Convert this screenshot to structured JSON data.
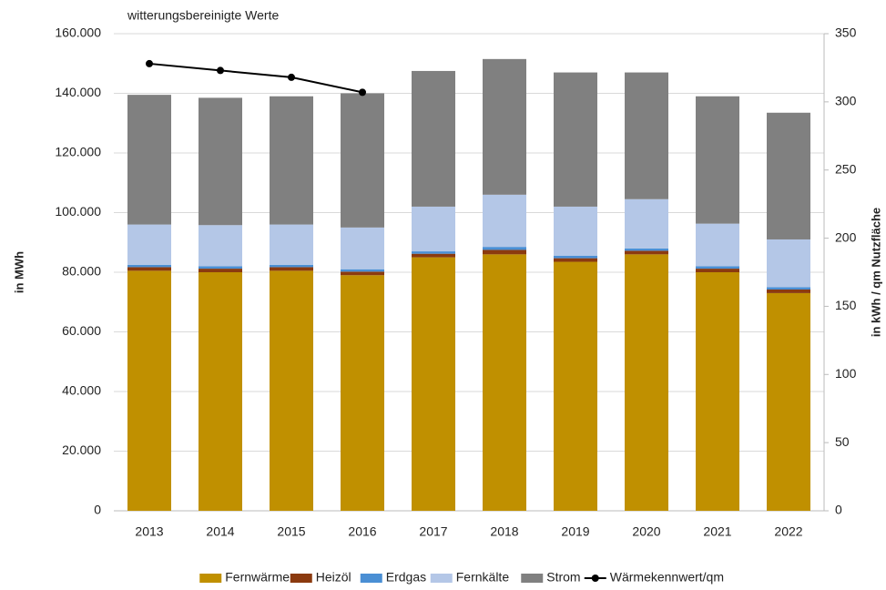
{
  "chart_data": {
    "type": "stacked_bar_line",
    "annotation": "witterungsbereinigte Werte",
    "ylabel": "in MWh",
    "y2label": "in kWh / qm Nutzfläche",
    "categories": [
      "2013",
      "2014",
      "2015",
      "2016",
      "2017",
      "2018",
      "2019",
      "2020",
      "2021",
      "2022"
    ],
    "series": [
      {
        "name": "Fernwärme",
        "color": "#c09000",
        "values": [
          80500,
          80000,
          80500,
          79000,
          85000,
          86000,
          83500,
          86000,
          80000,
          73000
        ]
      },
      {
        "name": "Heizöl",
        "color": "#8b3a0f",
        "values": [
          1200,
          1200,
          1200,
          1200,
          1200,
          1500,
          1200,
          1200,
          1200,
          1200
        ]
      },
      {
        "name": "Erdgas",
        "color": "#4a8fd4",
        "values": [
          800,
          800,
          800,
          800,
          800,
          1000,
          800,
          800,
          800,
          800
        ]
      },
      {
        "name": "Fernkälte",
        "color": "#b4c7e7",
        "values": [
          13500,
          13800,
          13500,
          14000,
          15000,
          17500,
          16500,
          16500,
          14300,
          16000
        ]
      },
      {
        "name": "Strom",
        "color": "#808080",
        "values": [
          43500,
          42700,
          43000,
          45000,
          45500,
          45500,
          45000,
          42500,
          42700,
          42500
        ]
      },
      {
        "name": "Wärmekennwert/qm",
        "color": "#000000",
        "axis": "y2",
        "type": "line",
        "values": [
          328,
          323,
          318,
          307,
          null,
          null,
          null,
          null,
          null,
          null
        ]
      }
    ],
    "ylim": [
      0,
      160000
    ],
    "yticks": [
      {
        "value": 0,
        "label": "0"
      },
      {
        "value": 20000,
        "label": "20.000"
      },
      {
        "value": 40000,
        "label": "40.000"
      },
      {
        "value": 60000,
        "label": "60.000"
      },
      {
        "value": 80000,
        "label": "80.000"
      },
      {
        "value": 100000,
        "label": "100.000"
      },
      {
        "value": 120000,
        "label": "120.000"
      },
      {
        "value": 140000,
        "label": "140.000"
      },
      {
        "value": 160000,
        "label": "160.000"
      }
    ],
    "y2lim": [
      0,
      350
    ],
    "y2ticks": [
      0,
      50,
      100,
      150,
      200,
      250,
      300,
      350
    ],
    "grid": true,
    "legend": "bottom"
  }
}
